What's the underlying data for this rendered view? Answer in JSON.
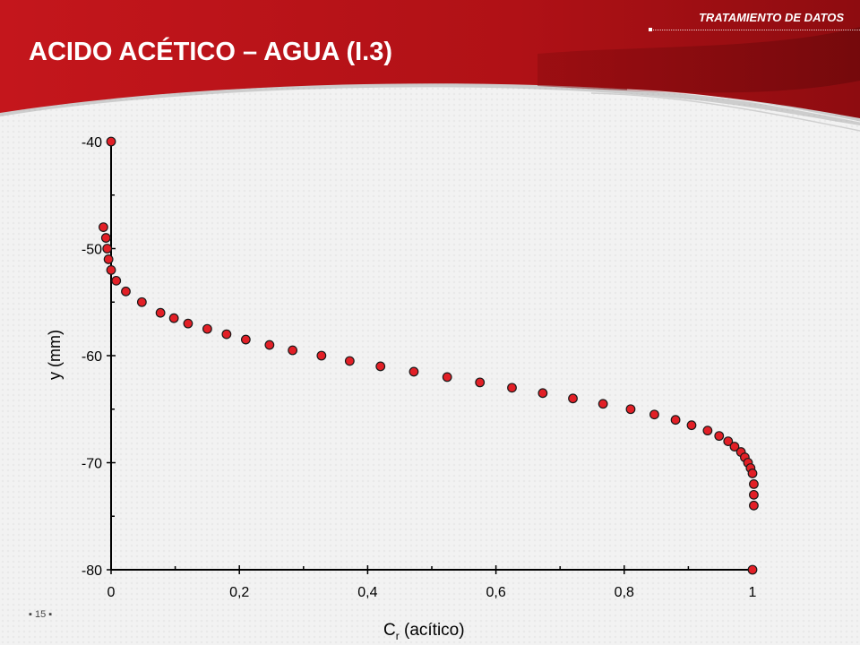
{
  "header": {
    "section": "TRATAMIENTO DE DATOS",
    "title": "ACIDO ACÉTICO – AGUA (I.3)"
  },
  "footer": {
    "page_number": "15"
  },
  "colors": {
    "header_red": "#b01116",
    "header_dark": "#7a0a0e",
    "marker_fill": "#e21f26",
    "marker_stroke": "#1a1a1a",
    "axis": "#000000"
  },
  "chart_data": {
    "type": "scatter",
    "xlabel_main": "C",
    "xlabel_sub": "r",
    "xlabel_rest": " (acítico)",
    "ylabel": "y (mm)",
    "xlim": [
      0,
      1
    ],
    "ylim": [
      -80,
      -40
    ],
    "xticks": [
      0,
      0.2,
      0.4,
      0.6,
      0.8,
      1
    ],
    "xtick_labels": [
      "0",
      "0,2",
      "0,4",
      "0,6",
      "0,8",
      "1"
    ],
    "yticks": [
      -40,
      -50,
      -60,
      -70,
      -80
    ],
    "ytick_labels": [
      "-40",
      "-50",
      "-60",
      "-70",
      "-80"
    ],
    "grid": false,
    "points": [
      [
        0.0,
        -40
      ],
      [
        -0.012,
        -48
      ],
      [
        -0.008,
        -49
      ],
      [
        -0.006,
        -50
      ],
      [
        -0.004,
        -51
      ],
      [
        0.0,
        -52
      ],
      [
        0.008,
        -53
      ],
      [
        0.023,
        -54
      ],
      [
        0.048,
        -55
      ],
      [
        0.077,
        -56
      ],
      [
        0.098,
        -56.5
      ],
      [
        0.12,
        -57
      ],
      [
        0.15,
        -57.5
      ],
      [
        0.18,
        -58
      ],
      [
        0.21,
        -58.5
      ],
      [
        0.247,
        -59
      ],
      [
        0.283,
        -59.5
      ],
      [
        0.328,
        -60
      ],
      [
        0.372,
        -60.5
      ],
      [
        0.42,
        -61
      ],
      [
        0.472,
        -61.5
      ],
      [
        0.524,
        -62
      ],
      [
        0.575,
        -62.5
      ],
      [
        0.625,
        -63
      ],
      [
        0.673,
        -63.5
      ],
      [
        0.72,
        -64
      ],
      [
        0.767,
        -64.5
      ],
      [
        0.81,
        -65
      ],
      [
        0.847,
        -65.5
      ],
      [
        0.88,
        -66
      ],
      [
        0.905,
        -66.5
      ],
      [
        0.93,
        -67
      ],
      [
        0.948,
        -67.5
      ],
      [
        0.962,
        -68
      ],
      [
        0.972,
        -68.5
      ],
      [
        0.982,
        -69
      ],
      [
        0.988,
        -69.5
      ],
      [
        0.993,
        -70
      ],
      [
        0.997,
        -70.5
      ],
      [
        1.0,
        -71
      ],
      [
        1.002,
        -72
      ],
      [
        1.002,
        -73
      ],
      [
        1.002,
        -74
      ],
      [
        1.0,
        -80
      ]
    ]
  }
}
